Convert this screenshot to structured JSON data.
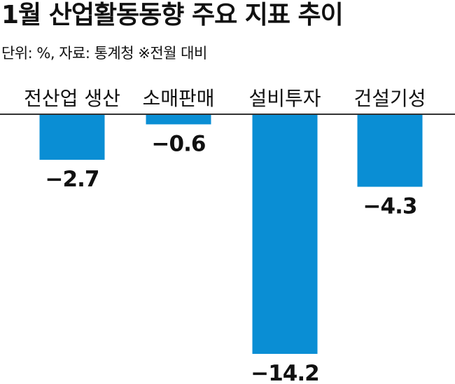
{
  "title": "1월 산업활동동향 주요 지표 추이",
  "subtitle": "단위: %, 자료: 통계청 ※전월 대비",
  "colors": {
    "bar": "#0a8ed4",
    "baseline": "#333333"
  },
  "chart_data": {
    "type": "bar",
    "title": "1월 산업활동동향 주요 지표 추이",
    "subtitle": "단위: %, 자료: 통계청 ※전월 대비",
    "categories": [
      "전산업 생산",
      "소매판매",
      "설비투자",
      "건설기성"
    ],
    "values": [
      -2.7,
      -0.6,
      -14.2,
      -4.3
    ],
    "value_labels": [
      "−2.7",
      "−0.6",
      "−14.2",
      "−4.3"
    ],
    "xlabel": "",
    "ylabel": "",
    "ylim": [
      -14.2,
      0
    ],
    "grid": false,
    "legend": "none"
  }
}
